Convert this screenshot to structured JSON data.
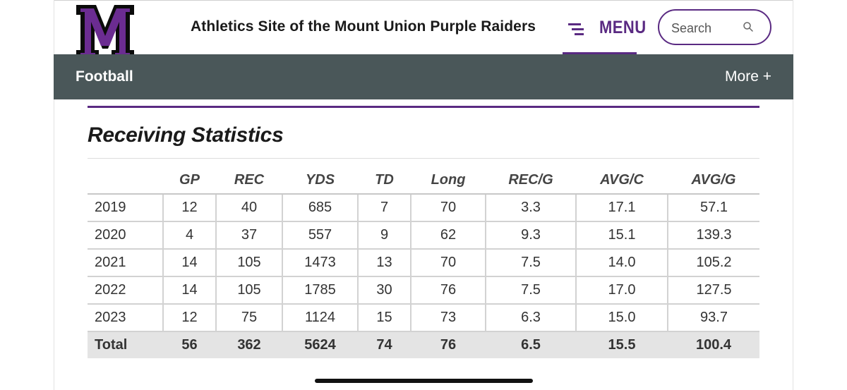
{
  "header": {
    "logo_letter": "M",
    "site_title": "Athletics Site of the Mount Union Purple Raiders",
    "menu_label": "MENU",
    "search_placeholder": "Search"
  },
  "sport_bar": {
    "sport_name": "Football",
    "more_label": "More +"
  },
  "section": {
    "heading": "Receiving Statistics"
  },
  "table": {
    "columns": [
      "",
      "GP",
      "REC",
      "YDS",
      "TD",
      "Long",
      "REC/G",
      "AVG/C",
      "AVG/G"
    ],
    "rows": [
      [
        "2019",
        "12",
        "40",
        "685",
        "7",
        "70",
        "3.3",
        "17.1",
        "57.1"
      ],
      [
        "2020",
        "4",
        "37",
        "557",
        "9",
        "62",
        "9.3",
        "15.1",
        "139.3"
      ],
      [
        "2021",
        "14",
        "105",
        "1473",
        "13",
        "70",
        "7.5",
        "14.0",
        "105.2"
      ],
      [
        "2022",
        "14",
        "105",
        "1785",
        "30",
        "76",
        "7.5",
        "17.0",
        "127.5"
      ],
      [
        "2023",
        "12",
        "75",
        "1124",
        "15",
        "73",
        "6.3",
        "15.0",
        "93.7"
      ]
    ],
    "total": [
      "Total",
      "56",
      "362",
      "5624",
      "74",
      "76",
      "6.5",
      "15.5",
      "100.4"
    ]
  },
  "colors": {
    "brand_purple": "#5a2a82",
    "sport_bar": "#4a5759",
    "total_row": "#e4e4e4"
  },
  "icons": {
    "menu": "hamburger-icon",
    "search": "magnifier-icon"
  }
}
